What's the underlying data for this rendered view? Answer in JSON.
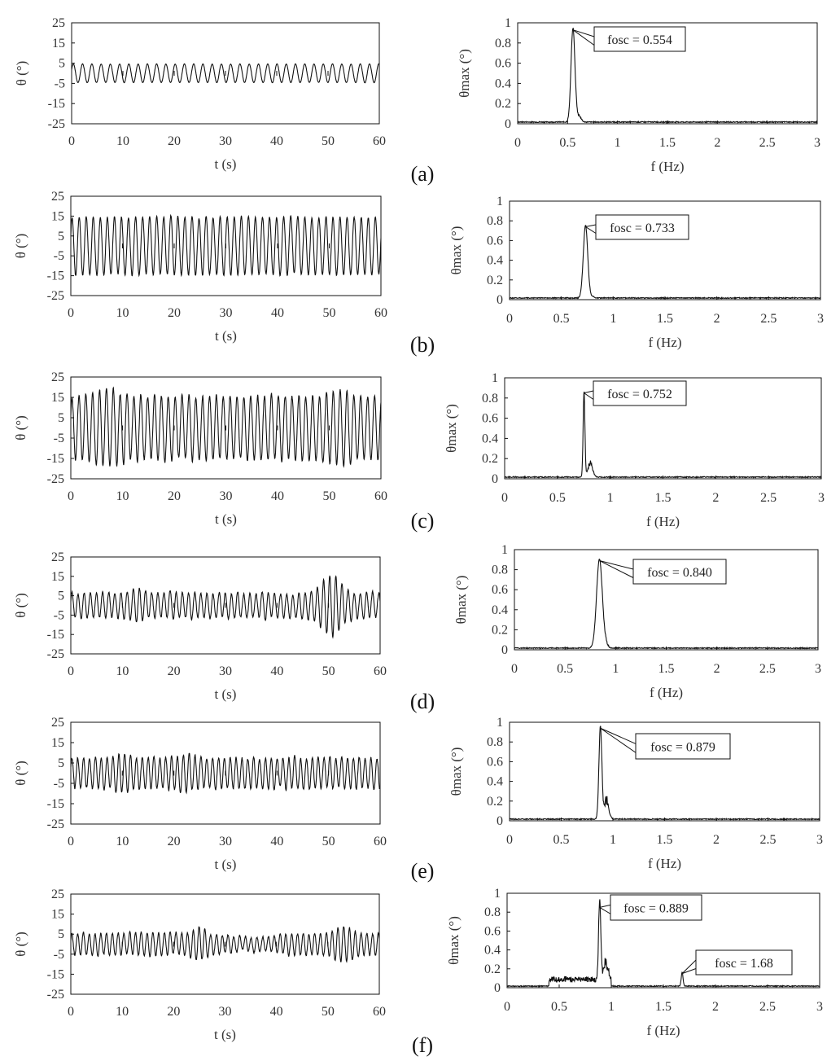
{
  "figure": {
    "rows": [
      {
        "panel_label": "(a)",
        "time_series": {
          "ylabel": "θ (°)",
          "xlabel": "t (s)",
          "xticks": [
            "0",
            "10",
            "20",
            "30",
            "40",
            "50",
            "60"
          ],
          "yticks": [
            "25",
            "15",
            "5",
            "-5",
            "-15",
            "-25"
          ]
        },
        "spectrum": {
          "ylabel": "θmax (°)",
          "xlabel": "f (Hz)",
          "xticks": [
            "0",
            "0.5",
            "1",
            "1.5",
            "2",
            "2.5",
            "3"
          ],
          "yticks": [
            "1",
            "0.8",
            "0.6",
            "0.4",
            "0.2",
            "0"
          ],
          "annotations": [
            {
              "text": "fosc = 0.554"
            }
          ]
        }
      },
      {
        "panel_label": "(b)",
        "time_series": {
          "ylabel": "θ (°)",
          "xlabel": "t (s)",
          "xticks": [
            "0",
            "10",
            "20",
            "30",
            "40",
            "50",
            "60"
          ],
          "yticks": [
            "25",
            "15",
            "5",
            "-5",
            "-15",
            "-25"
          ]
        },
        "spectrum": {
          "ylabel": "θmax (°)",
          "xlabel": "f (Hz)",
          "xticks": [
            "0",
            "0.5",
            "1",
            "1.5",
            "2",
            "2.5",
            "3"
          ],
          "yticks": [
            "1",
            "0.8",
            "0.6",
            "0.4",
            "0.2",
            "0"
          ],
          "annotations": [
            {
              "text": "fosc = 0.733"
            }
          ]
        }
      },
      {
        "panel_label": "(c)",
        "time_series": {
          "ylabel": "θ (°)",
          "xlabel": "t (s)",
          "xticks": [
            "0",
            "10",
            "20",
            "30",
            "40",
            "50",
            "60"
          ],
          "yticks": [
            "25",
            "15",
            "5",
            "-5",
            "-15",
            "-25"
          ]
        },
        "spectrum": {
          "ylabel": "θmax (°)",
          "xlabel": "f (Hz)",
          "xticks": [
            "0",
            "0.5",
            "1",
            "1.5",
            "2",
            "2.5",
            "3"
          ],
          "yticks": [
            "1",
            "0.8",
            "0.6",
            "0.4",
            "0.2",
            "0"
          ],
          "annotations": [
            {
              "text": "fosc = 0.752"
            }
          ]
        }
      },
      {
        "panel_label": "(d)",
        "time_series": {
          "ylabel": "θ (°)",
          "xlabel": "t (s)",
          "xticks": [
            "0",
            "10",
            "20",
            "30",
            "40",
            "50",
            "60"
          ],
          "yticks": [
            "25",
            "15",
            "5",
            "-5",
            "-15",
            "-25"
          ]
        },
        "spectrum": {
          "ylabel": "θmax (°)",
          "xlabel": "f (Hz)",
          "xticks": [
            "0",
            "0.5",
            "1",
            "1.5",
            "2",
            "2.5",
            "3"
          ],
          "yticks": [
            "1",
            "0.8",
            "0.6",
            "0.4",
            "0.2",
            "0"
          ],
          "annotations": [
            {
              "text": "fosc = 0.840"
            }
          ]
        }
      },
      {
        "panel_label": "(e)",
        "time_series": {
          "ylabel": "θ (°)",
          "xlabel": "t (s)",
          "xticks": [
            "0",
            "10",
            "20",
            "30",
            "40",
            "50",
            "60"
          ],
          "yticks": [
            "25",
            "15",
            "5",
            "-5",
            "-15",
            "-25"
          ]
        },
        "spectrum": {
          "ylabel": "θmax (°)",
          "xlabel": "f (Hz)",
          "xticks": [
            "0",
            "0.5",
            "1",
            "1.5",
            "2",
            "2.5",
            "3"
          ],
          "yticks": [
            "1",
            "0.8",
            "0.6",
            "0.4",
            "0.2",
            "0"
          ],
          "annotations": [
            {
              "text": "fosc = 0.879"
            }
          ]
        }
      },
      {
        "panel_label": "(f)",
        "time_series": {
          "ylabel": "θ (°)",
          "xlabel": "t (s)",
          "xticks": [
            "0",
            "10",
            "20",
            "30",
            "40",
            "50",
            "60"
          ],
          "yticks": [
            "25",
            "15",
            "5",
            "-5",
            "-15",
            "-25"
          ]
        },
        "spectrum": {
          "ylabel": "θmax (°)",
          "xlabel": "f (Hz)",
          "xticks": [
            "0",
            "0.5",
            "1",
            "1.5",
            "2",
            "2.5",
            "3"
          ],
          "yticks": [
            "1",
            "0.8",
            "0.6",
            "0.4",
            "0.2",
            "0"
          ],
          "annotations": [
            {
              "text": "fosc = 0.889"
            },
            {
              "text": "fosc = 1.68"
            }
          ]
        }
      }
    ]
  },
  "chart_data": [
    {
      "panel": "(a)",
      "type": "line",
      "title": "",
      "xlabel": "t (s)",
      "ylabel": "θ (°)",
      "xlim": [
        0,
        60
      ],
      "ylim": [
        -25,
        25
      ],
      "grid": false,
      "series": [
        {
          "values_summary": {
            "frequency_hz": 0.554,
            "amplitude_deg": 5
          }
        }
      ]
    },
    {
      "panel": "(a)",
      "type": "line",
      "title": "",
      "xlabel": "f (Hz)",
      "ylabel": "θmax (°)",
      "xlim": [
        0,
        3
      ],
      "ylim": [
        0,
        1
      ],
      "grid": false,
      "peaks": [
        {
          "x": 0.554,
          "y": 0.93
        }
      ],
      "annotations": [
        "fosc = 0.554"
      ]
    },
    {
      "panel": "(b)",
      "type": "line",
      "title": "",
      "xlabel": "t (s)",
      "ylabel": "θ (°)",
      "xlim": [
        0,
        60
      ],
      "ylim": [
        -25,
        25
      ],
      "grid": false,
      "series": [
        {
          "values_summary": {
            "frequency_hz": 0.733,
            "amplitude_deg": 15
          }
        }
      ]
    },
    {
      "panel": "(b)",
      "type": "line",
      "title": "",
      "xlabel": "f (Hz)",
      "ylabel": "θmax (°)",
      "xlim": [
        0,
        3
      ],
      "ylim": [
        0,
        1
      ],
      "grid": false,
      "peaks": [
        {
          "x": 0.733,
          "y": 0.74
        }
      ],
      "annotations": [
        "fosc = 0.733"
      ]
    },
    {
      "panel": "(c)",
      "type": "line",
      "title": "",
      "xlabel": "t (s)",
      "ylabel": "θ (°)",
      "xlim": [
        0,
        60
      ],
      "ylim": [
        -25,
        25
      ],
      "grid": false,
      "series": [
        {
          "values_summary": {
            "frequency_hz": 0.752,
            "amplitude_deg": 16
          }
        }
      ]
    },
    {
      "panel": "(c)",
      "type": "line",
      "title": "",
      "xlabel": "f (Hz)",
      "ylabel": "θmax (°)",
      "xlim": [
        0,
        3
      ],
      "ylim": [
        0,
        1
      ],
      "grid": false,
      "peaks": [
        {
          "x": 0.752,
          "y": 0.85
        }
      ],
      "annotations": [
        "fosc = 0.752"
      ]
    },
    {
      "panel": "(d)",
      "type": "line",
      "title": "",
      "xlabel": "t (s)",
      "ylabel": "θ (°)",
      "xlim": [
        0,
        60
      ],
      "ylim": [
        -25,
        25
      ],
      "grid": false,
      "series": [
        {
          "values_summary": {
            "frequency_hz": 0.84,
            "amplitude_deg": 7
          }
        }
      ]
    },
    {
      "panel": "(d)",
      "type": "line",
      "title": "",
      "xlabel": "f (Hz)",
      "ylabel": "θmax (°)",
      "xlim": [
        0,
        3
      ],
      "ylim": [
        0,
        1
      ],
      "grid": false,
      "peaks": [
        {
          "x": 0.84,
          "y": 0.89
        }
      ],
      "annotations": [
        "fosc = 0.840"
      ]
    },
    {
      "panel": "(e)",
      "type": "line",
      "title": "",
      "xlabel": "t (s)",
      "ylabel": "θ (°)",
      "xlim": [
        0,
        60
      ],
      "ylim": [
        -25,
        25
      ],
      "grid": false,
      "series": [
        {
          "values_summary": {
            "frequency_hz": 0.879,
            "amplitude_deg": 8
          }
        }
      ]
    },
    {
      "panel": "(e)",
      "type": "line",
      "title": "",
      "xlabel": "f (Hz)",
      "ylabel": "θmax (°)",
      "xlim": [
        0,
        3
      ],
      "ylim": [
        0,
        1
      ],
      "grid": false,
      "peaks": [
        {
          "x": 0.879,
          "y": 0.94
        }
      ],
      "annotations": [
        "fosc = 0.879"
      ]
    },
    {
      "panel": "(f)",
      "type": "line",
      "title": "",
      "xlabel": "t (s)",
      "ylabel": "θ (°)",
      "xlim": [
        0,
        60
      ],
      "ylim": [
        -25,
        25
      ],
      "grid": false,
      "series": [
        {
          "values_summary": {
            "frequency_hz": 0.889,
            "amplitude_deg": 6
          }
        }
      ]
    },
    {
      "panel": "(f)",
      "type": "line",
      "title": "",
      "xlabel": "f (Hz)",
      "ylabel": "θmax (°)",
      "xlim": [
        0,
        3
      ],
      "ylim": [
        0,
        1
      ],
      "grid": false,
      "peaks": [
        {
          "x": 0.889,
          "y": 0.85
        },
        {
          "x": 1.68,
          "y": 0.15
        }
      ],
      "annotations": [
        "fosc = 0.889",
        "fosc = 1.68"
      ]
    }
  ]
}
